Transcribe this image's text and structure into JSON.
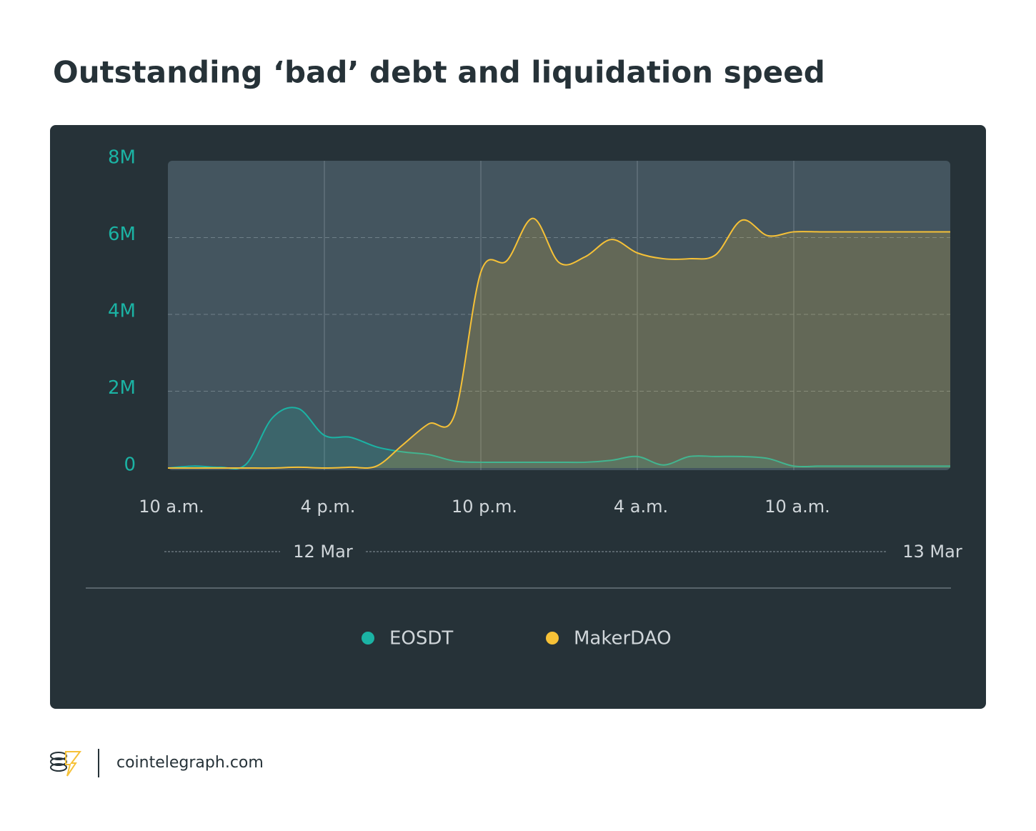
{
  "chart_data": {
    "type": "area",
    "title": "Outstanding ‘bad’ debt and liquidation speed",
    "x": [
      0,
      1,
      2,
      3,
      4,
      5,
      6,
      7,
      8,
      9,
      10,
      11,
      12,
      13,
      14,
      15,
      16,
      17,
      18,
      19,
      20,
      21,
      22,
      23,
      24,
      25,
      26,
      27,
      28,
      29,
      30
    ],
    "xlim": [
      0,
      30
    ],
    "xticks": [
      {
        "value": 0,
        "label": "10 a.m."
      },
      {
        "value": 6,
        "label": "4 p.m."
      },
      {
        "value": 12,
        "label": "10 p.m."
      },
      {
        "value": 18,
        "label": "4 a.m."
      },
      {
        "value": 24,
        "label": "10 a.m."
      }
    ],
    "date_labels": [
      "12 Mar",
      "13 Mar"
    ],
    "ylim": [
      0,
      8000000
    ],
    "yticks": [
      {
        "value": 0,
        "label": "0"
      },
      {
        "value": 2000000,
        "label": "2M"
      },
      {
        "value": 4000000,
        "label": "4M"
      },
      {
        "value": 6000000,
        "label": "6M"
      },
      {
        "value": 8000000,
        "label": "8M"
      }
    ],
    "grid": true,
    "series": [
      {
        "name": "EOSDT",
        "color": "#1bb3a4",
        "values": [
          0,
          50000,
          20000,
          100000,
          1300000,
          1550000,
          850000,
          800000,
          550000,
          420000,
          350000,
          180000,
          150000,
          150000,
          150000,
          150000,
          150000,
          200000,
          300000,
          80000,
          300000,
          300000,
          300000,
          250000,
          50000,
          50000,
          50000,
          50000,
          50000,
          50000,
          50000
        ]
      },
      {
        "name": "MakerDAO",
        "color": "#f6c137",
        "values": [
          0,
          0,
          0,
          0,
          0,
          20000,
          0,
          20000,
          50000,
          600000,
          1150000,
          1400000,
          5100000,
          5400000,
          6500000,
          5350000,
          5500000,
          5950000,
          5600000,
          5450000,
          5450000,
          5550000,
          6450000,
          6050000,
          6150000,
          6150000,
          6150000,
          6150000,
          6150000,
          6150000,
          6150000
        ]
      }
    ]
  },
  "source": "cointelegraph.com"
}
